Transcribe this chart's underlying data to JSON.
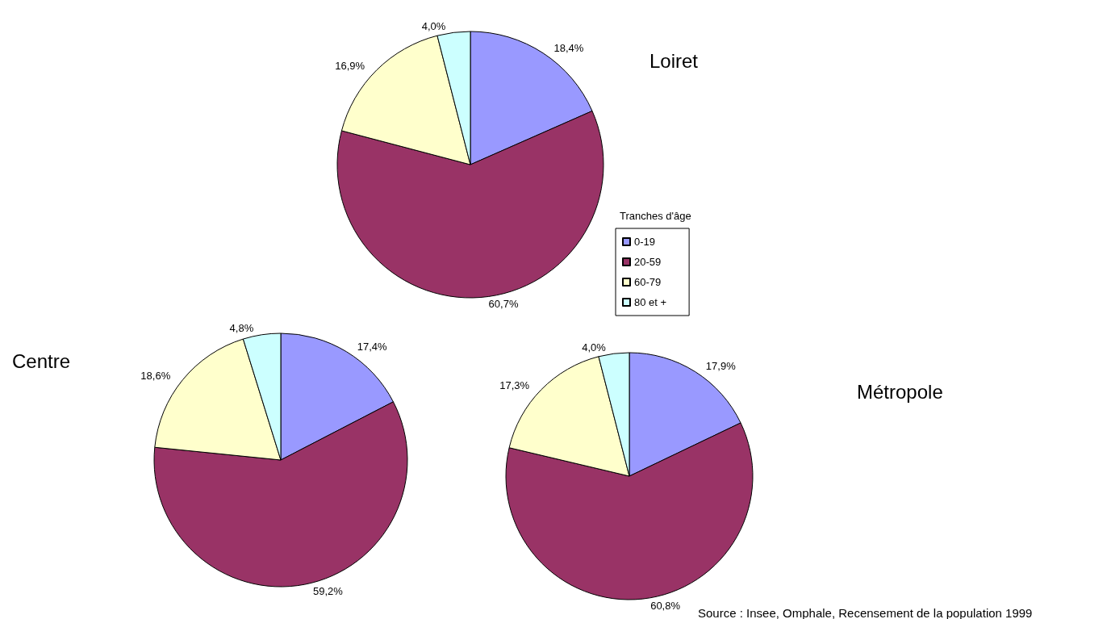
{
  "chart_data": [
    {
      "type": "pie",
      "title": "Loiret",
      "legend_title": "Tranches d'âge",
      "legend": "right",
      "categories": [
        "0-19",
        "20-59",
        "60-79",
        "80 et +"
      ],
      "values": [
        18.4,
        60.7,
        16.9,
        4.0
      ],
      "value_labels": [
        "18,4%",
        "60,7%",
        "16,9%",
        "4,0%"
      ],
      "colors": [
        "#9999ff",
        "#993366",
        "#ffffcc",
        "#ccffff"
      ]
    },
    {
      "type": "pie",
      "title": "Centre",
      "categories": [
        null,
        null,
        null,
        null
      ],
      "values": [
        17.4,
        59.2,
        18.6,
        4.8
      ],
      "value_labels": [
        "17,4%",
        "59,2%",
        "18,6%",
        "4,8%"
      ],
      "colors": [
        "#9999ff",
        "#993366",
        "#ffffcc",
        "#ccffff"
      ]
    },
    {
      "type": "pie",
      "title": "Métropole",
      "categories": [
        null,
        null,
        null,
        null
      ],
      "values": [
        17.9,
        60.8,
        17.3,
        4.0
      ],
      "value_labels": [
        "17,9%",
        "60,8%",
        "17,3%",
        "4,0%"
      ],
      "colors": [
        "#9999ff",
        "#993366",
        "#ffffcc",
        "#ccffff"
      ],
      "annotations": [
        "Source : Insee, Omphale, Recensement de la population 1999"
      ]
    }
  ]
}
